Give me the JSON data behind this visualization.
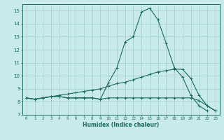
{
  "xlabel": "Humidex (Indice chaleur)",
  "x": [
    0,
    1,
    2,
    3,
    4,
    5,
    6,
    7,
    8,
    9,
    10,
    11,
    12,
    13,
    14,
    15,
    16,
    17,
    18,
    19,
    20,
    21,
    22,
    23
  ],
  "line1": [
    8.3,
    8.2,
    8.3,
    8.4,
    8.4,
    8.3,
    8.3,
    8.3,
    8.3,
    8.2,
    8.3,
    8.3,
    8.3,
    8.3,
    8.3,
    8.3,
    8.3,
    8.3,
    8.3,
    8.3,
    8.3,
    8.1,
    7.7,
    7.3
  ],
  "line2": [
    8.3,
    8.2,
    8.3,
    8.4,
    8.4,
    8.3,
    8.3,
    8.3,
    8.3,
    8.2,
    9.5,
    10.6,
    12.6,
    13.0,
    14.9,
    15.2,
    14.3,
    12.5,
    10.6,
    9.9,
    8.5,
    7.7,
    7.3,
    null
  ],
  "line3": [
    8.3,
    8.2,
    8.3,
    8.4,
    8.5,
    8.6,
    8.7,
    8.8,
    8.9,
    9.0,
    9.2,
    9.4,
    9.5,
    9.7,
    9.9,
    10.1,
    10.3,
    10.4,
    10.5,
    10.5,
    9.8,
    8.5,
    7.7,
    7.3
  ],
  "bg_color": "#c8eaea",
  "line_color": "#1a6b5a",
  "grid_color": "#9ecece",
  "ylim": [
    7,
    15.5
  ],
  "yticks": [
    7,
    8,
    9,
    10,
    11,
    12,
    13,
    14,
    15
  ],
  "xticks": [
    0,
    1,
    2,
    3,
    4,
    5,
    6,
    7,
    8,
    9,
    10,
    11,
    12,
    13,
    14,
    15,
    16,
    17,
    18,
    19,
    20,
    21,
    22,
    23
  ],
  "xtick_labels": [
    "0",
    "1",
    "2",
    "3",
    "4",
    "5",
    "6",
    "7",
    "8",
    "9",
    "10",
    "11",
    "12",
    "13",
    "14",
    "15",
    "16",
    "17",
    "18",
    "19",
    "20",
    "21",
    "22",
    "23"
  ]
}
